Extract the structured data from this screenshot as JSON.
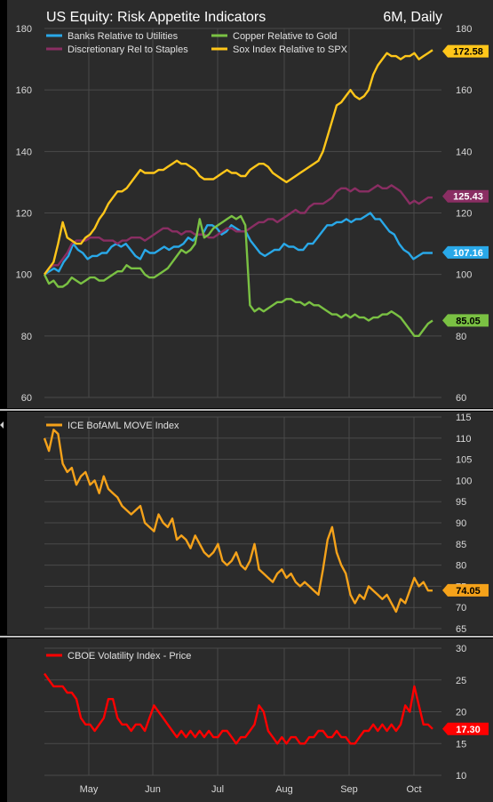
{
  "chart_data": [
    {
      "type": "line",
      "title": "US Equity: Risk Appetite Indicators",
      "subtitle": "6M, Daily",
      "ylim": [
        60,
        180
      ],
      "yticks": [
        60,
        80,
        100,
        120,
        140,
        160,
        180
      ],
      "series": [
        {
          "name": "Banks Relative to Utilities",
          "color": "#29a8e8",
          "last_label": "107.16",
          "values": [
            100,
            101,
            102,
            101,
            104,
            106,
            110,
            108,
            107,
            105,
            106,
            106,
            107,
            107,
            109,
            110,
            109,
            110,
            108,
            106,
            105,
            108,
            107,
            107,
            108,
            109,
            108,
            109,
            109,
            110,
            112,
            111,
            113,
            113,
            116,
            116,
            115,
            113,
            114,
            116,
            115,
            114,
            114,
            111,
            109,
            107,
            106,
            107,
            108,
            108,
            110,
            109,
            109,
            108,
            108,
            110,
            110,
            112,
            114,
            116,
            116,
            117,
            117,
            118,
            117,
            118,
            118,
            119,
            120,
            118,
            118,
            116,
            114,
            113,
            110,
            108,
            107,
            105,
            106,
            107,
            107,
            107
          ]
        },
        {
          "name": "Discretionary Rel to Staples",
          "color": "#8a2e63",
          "last_label": "125.43",
          "values": [
            100,
            102,
            103,
            103,
            105,
            107,
            110,
            111,
            111,
            111,
            112,
            112,
            112,
            111,
            111,
            111,
            110,
            111,
            111,
            112,
            112,
            112,
            111,
            112,
            113,
            114,
            115,
            115,
            114,
            114,
            113,
            114,
            114,
            113,
            113,
            113,
            112,
            112,
            113,
            114,
            115,
            115,
            114,
            114,
            114,
            115,
            116,
            117,
            117,
            118,
            118,
            117,
            118,
            119,
            120,
            121,
            120,
            120,
            122,
            123,
            123,
            123,
            124,
            125,
            127,
            128,
            128,
            127,
            128,
            127,
            127,
            127,
            128,
            129,
            128,
            128,
            129,
            128,
            127,
            125,
            123,
            124,
            123,
            124,
            125,
            125
          ]
        },
        {
          "name": "Copper Relative to Gold",
          "color": "#7ac143",
          "last_label": "85.05",
          "values": [
            100,
            97,
            98,
            96,
            96,
            97,
            99,
            98,
            97,
            98,
            99,
            99,
            98,
            98,
            99,
            100,
            101,
            101,
            103,
            102,
            102,
            102,
            100,
            99,
            99,
            100,
            101,
            102,
            104,
            106,
            108,
            107,
            108,
            110,
            118,
            112,
            113,
            115,
            116,
            117,
            118,
            119,
            118,
            119,
            116,
            90,
            88,
            89,
            88,
            89,
            90,
            91,
            91,
            92,
            92,
            91,
            91,
            90,
            91,
            90,
            90,
            89,
            88,
            87,
            87,
            86,
            87,
            86,
            87,
            86,
            86,
            85,
            86,
            86,
            87,
            87,
            88,
            87,
            86,
            84,
            82,
            80,
            80,
            82,
            84,
            85
          ]
        },
        {
          "name": "Sox Index Relative to SPX",
          "color": "#ffc61a",
          "last_label": "172.58",
          "values": [
            100,
            102,
            104,
            110,
            117,
            112,
            111,
            110,
            110,
            112,
            113,
            115,
            118,
            120,
            123,
            125,
            127,
            127,
            128,
            130,
            132,
            134,
            133,
            133,
            133,
            134,
            134,
            135,
            136,
            137,
            136,
            136,
            135,
            134,
            132,
            131,
            131,
            131,
            132,
            133,
            134,
            133,
            133,
            132,
            132,
            134,
            135,
            136,
            136,
            135,
            133,
            132,
            131,
            130,
            131,
            132,
            133,
            134,
            135,
            136,
            137,
            140,
            145,
            150,
            155,
            156,
            158,
            160,
            158,
            157,
            158,
            160,
            165,
            168,
            170,
            172,
            171,
            171,
            170,
            171,
            171,
            172,
            170,
            171,
            172,
            173
          ]
        }
      ]
    },
    {
      "type": "line",
      "ylim": [
        65,
        115
      ],
      "yticks": [
        65,
        70,
        75,
        80,
        85,
        90,
        95,
        100,
        105,
        110,
        115
      ],
      "series": [
        {
          "name": "ICE BofAML MOVE Index",
          "color": "#f5a21a",
          "last_label": "74.05",
          "values": [
            110,
            107,
            112,
            111,
            104,
            102,
            103,
            99,
            101,
            102,
            99,
            100,
            97,
            101,
            98,
            97,
            96,
            94,
            93,
            92,
            93,
            94,
            90,
            89,
            88,
            92,
            90,
            89,
            91,
            86,
            87,
            86,
            84,
            87,
            85,
            83,
            82,
            83,
            85,
            81,
            80,
            81,
            83,
            80,
            79,
            81,
            85,
            79,
            78,
            77,
            76,
            78,
            79,
            77,
            78,
            76,
            75,
            76,
            75,
            74,
            73,
            79,
            86,
            89,
            83,
            80,
            78,
            73,
            71,
            73,
            72,
            75,
            74,
            73,
            72,
            73,
            71,
            69,
            72,
            71,
            74,
            77,
            75,
            76,
            74,
            74
          ]
        }
      ]
    },
    {
      "type": "line",
      "ylim": [
        10,
        30
      ],
      "yticks": [
        10,
        15,
        20,
        25,
        30
      ],
      "xlim": [
        "2021-04-15",
        "2021-10-15"
      ],
      "xticks": [
        "May",
        "Jun",
        "Jul",
        "Aug",
        "Sep",
        "Oct"
      ],
      "series": [
        {
          "name": "CBOE Volatility Index - Price",
          "color": "#ff0000",
          "last_label": "17.30",
          "values": [
            26,
            25,
            24,
            24,
            24,
            23,
            23,
            22,
            19,
            18,
            18,
            17,
            18,
            19,
            22,
            22,
            19,
            18,
            18,
            17,
            18,
            18,
            17,
            19,
            21,
            20,
            19,
            18,
            17,
            16,
            17,
            16,
            17,
            16,
            17,
            16,
            17,
            16,
            16,
            17,
            17,
            16,
            15,
            16,
            16,
            17,
            18,
            21,
            20,
            17,
            16,
            15,
            16,
            15,
            16,
            16,
            15,
            15,
            16,
            16,
            17,
            17,
            16,
            16,
            17,
            16,
            16,
            15,
            15,
            16,
            17,
            17,
            18,
            17,
            18,
            17,
            18,
            17,
            18,
            21,
            20,
            24,
            21,
            18,
            18,
            17.3
          ]
        }
      ]
    }
  ]
}
